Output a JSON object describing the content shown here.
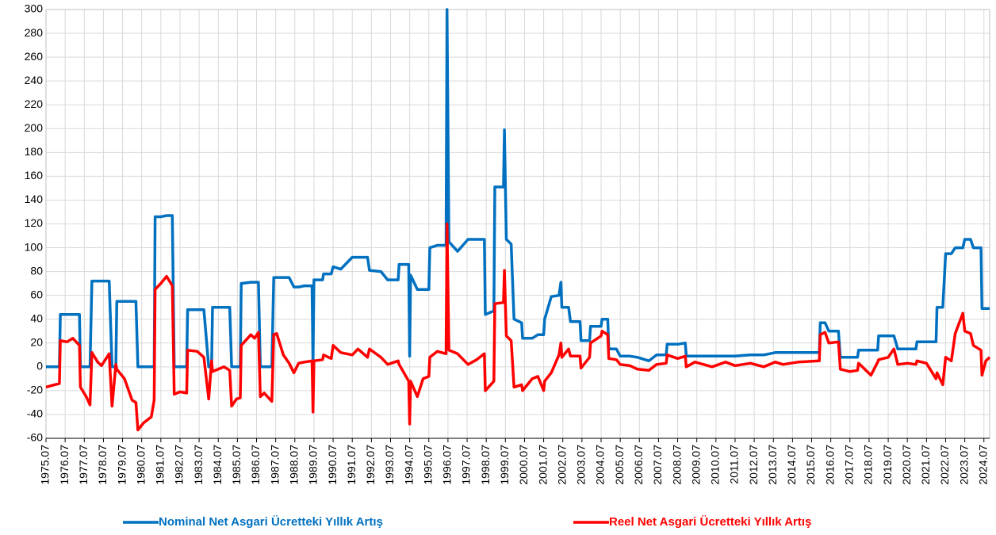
{
  "chart_data": {
    "type": "line",
    "x": [
      1975.5,
      1975.95,
      1976.2,
      1976.25,
      1976.6,
      1976.9,
      1977.25,
      1977.3,
      1977.6,
      1977.8,
      1977.9,
      1978.2,
      1978.4,
      1978.8,
      1978.95,
      1979.15,
      1979.2,
      1979.6,
      1980.0,
      1980.2,
      1980.3,
      1980.6,
      1981.0,
      1981.15,
      1981.2,
      1981.5,
      1981.8,
      1982.1,
      1982.2,
      1982.5,
      1982.85,
      1982.9,
      1983.4,
      1983.75,
      1984.0,
      1984.15,
      1984.2,
      1984.8,
      1985.1,
      1985.2,
      1985.45,
      1985.65,
      1985.7,
      1986.2,
      1986.4,
      1986.6,
      1986.7,
      1986.9,
      1987.3,
      1987.4,
      1987.55,
      1987.9,
      1988.2,
      1988.45,
      1988.7,
      1989.0,
      1989.4,
      1989.45,
      1989.5,
      1989.95,
      1990.0,
      1990.4,
      1990.5,
      1990.9,
      1991.5,
      1991.8,
      1992.3,
      1992.4,
      1993.0,
      1993.35,
      1993.9,
      1993.95,
      1994.45,
      1994.5,
      1994.55,
      1994.9,
      1995.2,
      1995.5,
      1995.55,
      1995.95,
      1996.4,
      1996.45,
      1996.55,
      1997.0,
      1997.55,
      1998.0,
      1998.4,
      1998.45,
      1998.9,
      1998.95,
      1999.4,
      1999.45,
      1999.55,
      1999.8,
      1999.95,
      2000.35,
      2000.4,
      2000.9,
      2001.2,
      2001.5,
      2001.55,
      2001.9,
      2002.3,
      2002.4,
      2002.45,
      2002.8,
      2002.9,
      2003.4,
      2003.45,
      2003.9,
      2003.95,
      2004.5,
      2004.55,
      2004.85,
      2004.9,
      2005.3,
      2005.5,
      2006.0,
      2006.4,
      2007.0,
      2007.4,
      2007.9,
      2007.95,
      2008.5,
      2008.9,
      2008.95,
      2009.4,
      2010.3,
      2011.0,
      2011.5,
      2012.3,
      2013.0,
      2013.6,
      2014.0,
      2014.8,
      2015.9,
      2015.95,
      2016.2,
      2016.4,
      2016.9,
      2017.0,
      2017.5,
      2017.9,
      2017.95,
      2018.6,
      2018.95,
      2019.0,
      2019.5,
      2019.8,
      2020.0,
      2020.5,
      2020.95,
      2021.0,
      2021.5,
      2022.0,
      2022.05,
      2022.35,
      2022.5,
      2022.8,
      2023.0,
      2023.4,
      2023.5,
      2023.8,
      2023.95,
      2024.35,
      2024.4,
      2024.6,
      2024.8
    ],
    "series": [
      {
        "name": "Nominal Net Asgari Ücretteki Yıllık Artış",
        "color": "#0070c0",
        "values": [
          0,
          0,
          0,
          44,
          44,
          44,
          44,
          0,
          0,
          0,
          72,
          72,
          72,
          72,
          0,
          0,
          55,
          55,
          55,
          55,
          0,
          0,
          0,
          0,
          126,
          126,
          127,
          127,
          0,
          0,
          0,
          48,
          48,
          48,
          0,
          0,
          50,
          50,
          50,
          0,
          0,
          0,
          70,
          71,
          71,
          71,
          0,
          0,
          0,
          75,
          75,
          75,
          75,
          67,
          67,
          68,
          68,
          0,
          73,
          73,
          78,
          78,
          84,
          82,
          92,
          92,
          92,
          81,
          80,
          73,
          73,
          86,
          86,
          9,
          77,
          65,
          65,
          65,
          100,
          102,
          102,
          300,
          105,
          97,
          107,
          107,
          107,
          44,
          47,
          151,
          151,
          199,
          107,
          103,
          40,
          37,
          24,
          24,
          27,
          27,
          40,
          59,
          60,
          71,
          50,
          50,
          38,
          38,
          22,
          22,
          34,
          34,
          40,
          40,
          15,
          15,
          9,
          9,
          8,
          5,
          10,
          10,
          19,
          19,
          20,
          9,
          9,
          9,
          9,
          9,
          10,
          10,
          12,
          12,
          12,
          12,
          37,
          37,
          30,
          30,
          8,
          8,
          8,
          14,
          14,
          14,
          26,
          26,
          26,
          15,
          15,
          15,
          21,
          21,
          21,
          50,
          50,
          95,
          95,
          100,
          100,
          107,
          107,
          100,
          100,
          49,
          49,
          49
        ]
      },
      {
        "name": "Reel Net Asgari Ücretteki Yıllık Artış",
        "color": "#ff0000",
        "values": [
          -17,
          -15,
          -14,
          22,
          21,
          24,
          18,
          -17,
          -25,
          -32,
          12,
          4,
          1,
          11,
          -33,
          2,
          -2,
          -10,
          -28,
          -30,
          -53,
          -47,
          -42,
          -28,
          65,
          70,
          76,
          68,
          -23,
          -21,
          -22,
          14,
          13,
          8,
          -27,
          5,
          -4,
          0,
          -3,
          -33,
          -27,
          -26,
          18,
          27,
          24,
          29,
          -25,
          -22,
          -29,
          27,
          28,
          10,
          3,
          -5,
          3,
          4,
          5,
          -38,
          5,
          6,
          10,
          7,
          18,
          12,
          10,
          15,
          8,
          15,
          8,
          2,
          5,
          2,
          -12,
          -48,
          -12,
          -25,
          -10,
          -8,
          8,
          13,
          11,
          120,
          14,
          11,
          2,
          6,
          11,
          -20,
          -12,
          53,
          54,
          81,
          26,
          22,
          -17,
          -15,
          -20,
          -10,
          -8,
          -20,
          -12,
          -5,
          10,
          20,
          8,
          15,
          9,
          9,
          -1,
          8,
          20,
          26,
          30,
          27,
          7,
          6,
          2,
          1,
          -2,
          -3,
          2,
          3,
          10,
          7,
          9,
          0,
          4,
          0,
          4,
          1,
          3,
          0,
          4,
          2,
          4,
          5,
          27,
          29,
          20,
          21,
          -2,
          -4,
          -3,
          3,
          -7,
          4,
          6,
          8,
          15,
          2,
          3,
          2,
          5,
          3,
          -10,
          -5,
          -15,
          8,
          5,
          28,
          45,
          30,
          28,
          18,
          14,
          -7,
          5,
          8
        ]
      }
    ],
    "xlim": [
      1975.5,
      2024.8
    ],
    "xticks": [
      {
        "value": 1975.5,
        "label": "1975.07"
      },
      {
        "value": 1976.5,
        "label": "1976.07"
      },
      {
        "value": 1977.5,
        "label": "1977.07"
      },
      {
        "value": 1978.5,
        "label": "1978.07"
      },
      {
        "value": 1979.5,
        "label": "1979.07"
      },
      {
        "value": 1980.5,
        "label": "1980.07"
      },
      {
        "value": 1981.5,
        "label": "1981.07"
      },
      {
        "value": 1982.5,
        "label": "1982.07"
      },
      {
        "value": 1983.5,
        "label": "1983.07"
      },
      {
        "value": 1984.5,
        "label": "1984.07"
      },
      {
        "value": 1985.5,
        "label": "1985.07"
      },
      {
        "value": 1986.5,
        "label": "1986.07"
      },
      {
        "value": 1987.5,
        "label": "1987.07"
      },
      {
        "value": 1988.5,
        "label": "1988.07"
      },
      {
        "value": 1989.5,
        "label": "1989.07"
      },
      {
        "value": 1990.5,
        "label": "1990.07"
      },
      {
        "value": 1991.5,
        "label": "1991.07"
      },
      {
        "value": 1992.5,
        "label": "1992.07"
      },
      {
        "value": 1993.5,
        "label": "1993.07"
      },
      {
        "value": 1994.5,
        "label": "1994.07"
      },
      {
        "value": 1995.5,
        "label": "1995.07"
      },
      {
        "value": 1996.5,
        "label": "1996.07"
      },
      {
        "value": 1997.5,
        "label": "1997.07"
      },
      {
        "value": 1998.5,
        "label": "1998.07"
      },
      {
        "value": 1999.5,
        "label": "1999.07"
      },
      {
        "value": 2000.5,
        "label": "2000.07"
      },
      {
        "value": 2001.5,
        "label": "2001.07"
      },
      {
        "value": 2002.5,
        "label": "2002.07"
      },
      {
        "value": 2003.5,
        "label": "2003.07"
      },
      {
        "value": 2004.5,
        "label": "2004.07"
      },
      {
        "value": 2005.5,
        "label": "2005.07"
      },
      {
        "value": 2006.5,
        "label": "2006.07"
      },
      {
        "value": 2007.5,
        "label": "2007.07"
      },
      {
        "value": 2008.5,
        "label": "2008.07"
      },
      {
        "value": 2009.5,
        "label": "2009.07"
      },
      {
        "value": 2010.5,
        "label": "2010.07"
      },
      {
        "value": 2011.5,
        "label": "2011.07"
      },
      {
        "value": 2012.5,
        "label": "2012.07"
      },
      {
        "value": 2013.5,
        "label": "2013.07"
      },
      {
        "value": 2014.5,
        "label": "2014.07"
      },
      {
        "value": 2015.5,
        "label": "2015.07"
      },
      {
        "value": 2016.5,
        "label": "2016.07"
      },
      {
        "value": 2017.5,
        "label": "2017.07"
      },
      {
        "value": 2018.5,
        "label": "2018.07"
      },
      {
        "value": 2019.5,
        "label": "2019.07"
      },
      {
        "value": 2020.5,
        "label": "2020.07"
      },
      {
        "value": 2021.5,
        "label": "2021.07"
      },
      {
        "value": 2022.5,
        "label": "2022.07"
      },
      {
        "value": 2023.5,
        "label": "2023.07"
      },
      {
        "value": 2024.5,
        "label": "2024.07"
      }
    ],
    "ylim": [
      -60,
      300
    ],
    "yticks": [
      -60,
      -40,
      -20,
      0,
      20,
      40,
      60,
      80,
      100,
      120,
      140,
      160,
      180,
      200,
      220,
      240,
      260,
      280,
      300
    ],
    "grid": true,
    "legend": "bottom"
  }
}
